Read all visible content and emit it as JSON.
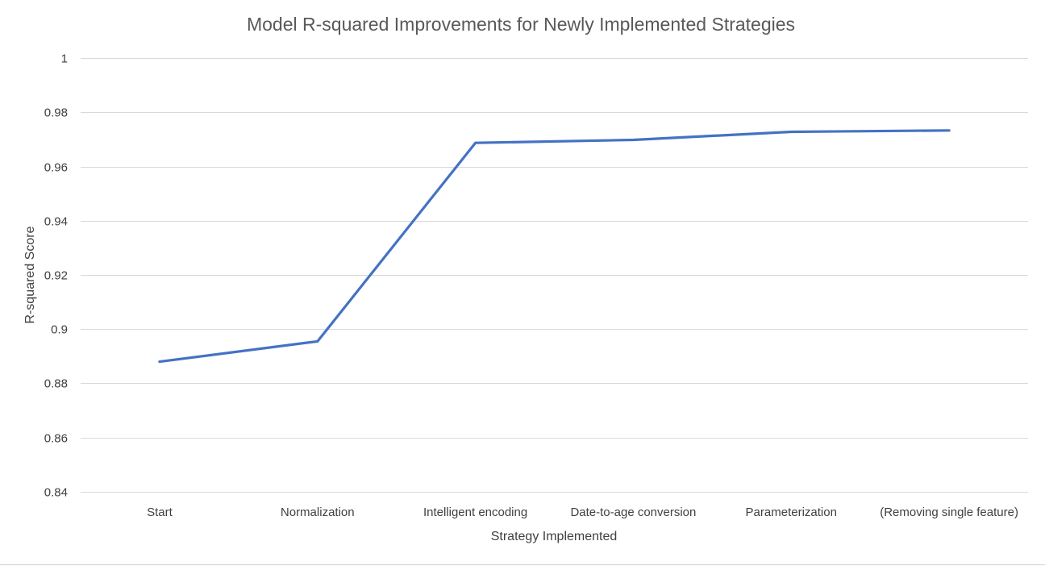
{
  "chart_data": {
    "type": "line",
    "title": "Model R-squared Improvements for Newly Implemented Strategies",
    "xlabel": "Strategy Implemented",
    "ylabel": "R-squared Score",
    "categories": [
      "Start",
      "Normalization",
      "Intelligent encoding",
      "Date-to-age conversion",
      "Parameterization",
      "(Removing single feature)"
    ],
    "series": [
      {
        "values": [
          0.888,
          0.8955,
          0.9687,
          0.9698,
          0.9728,
          0.9733
        ],
        "color": "#4472C4"
      }
    ],
    "ylim": [
      0.84,
      1
    ],
    "yticks": [
      0.84,
      0.86,
      0.88,
      0.9,
      0.92,
      0.94,
      0.96,
      0.98,
      1
    ],
    "ytick_labels": [
      "0.84",
      "0.86",
      "0.88",
      "0.9",
      "0.92",
      "0.94",
      "0.96",
      "0.98",
      "1"
    ],
    "grid": true,
    "legend": "none"
  }
}
